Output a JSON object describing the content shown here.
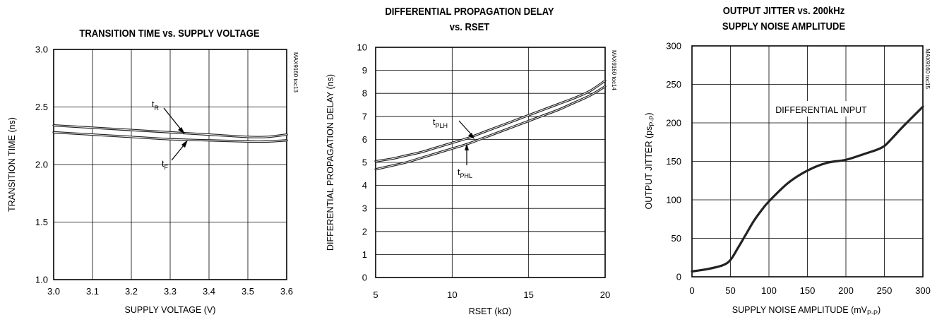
{
  "chart_data": [
    {
      "type": "line",
      "title": "TRANSITION TIME vs. SUPPLY VOLTAGE",
      "xlabel": "SUPPLY VOLTAGE (V)",
      "ylabel": "TRANSITION TIME (ns)",
      "side_label": "MAX9160 toc13",
      "xlim": [
        3.0,
        3.6
      ],
      "ylim": [
        1.0,
        3.0
      ],
      "xticks": [
        "3.0",
        "3.1",
        "3.2",
        "3.3",
        "3.4",
        "3.5",
        "3.6"
      ],
      "yticks": [
        "1.0",
        "1.5",
        "2.0",
        "2.5",
        "3.0"
      ],
      "grid": true,
      "series": [
        {
          "name": "tR",
          "name_main": "t",
          "name_sub": "R",
          "x": [
            3.0,
            3.1,
            3.2,
            3.3,
            3.4,
            3.5,
            3.55,
            3.6
          ],
          "y": [
            2.34,
            2.32,
            2.3,
            2.28,
            2.26,
            2.24,
            2.24,
            2.26
          ]
        },
        {
          "name": "tF",
          "name_main": "t",
          "name_sub": "F",
          "x": [
            3.0,
            3.1,
            3.2,
            3.3,
            3.4,
            3.5,
            3.55,
            3.6
          ],
          "y": [
            2.28,
            2.26,
            2.24,
            2.22,
            2.21,
            2.2,
            2.2,
            2.21
          ]
        }
      ]
    },
    {
      "type": "line",
      "title": "DIFFERENTIAL PROPAGATION DELAY vs. RSET",
      "title_lines": [
        "DIFFERENTIAL PROPAGATION DELAY",
        "vs. RSET"
      ],
      "xlabel": "RSET (kΩ)",
      "ylabel": "DIFFERENTIAL PROPAGATION DELAY (ns)",
      "side_label": "MAX9160 toc14",
      "xlim": [
        5,
        20
      ],
      "ylim": [
        0,
        10
      ],
      "xticks": [
        "5",
        "10",
        "15",
        "20"
      ],
      "yticks": [
        "0",
        "1",
        "2",
        "3",
        "4",
        "5",
        "6",
        "7",
        "8",
        "9",
        "10"
      ],
      "grid": true,
      "series": [
        {
          "name": "tPLH",
          "name_main": "t",
          "name_sub": "PLH",
          "x": [
            5,
            6,
            7,
            8,
            9,
            10,
            11,
            12,
            13,
            14,
            15,
            16,
            17,
            18,
            19,
            20
          ],
          "y": [
            5.05,
            5.15,
            5.3,
            5.45,
            5.65,
            5.85,
            6.05,
            6.3,
            6.55,
            6.8,
            7.05,
            7.3,
            7.55,
            7.8,
            8.1,
            8.55
          ]
        },
        {
          "name": "tPHL",
          "name_main": "t",
          "name_sub": "PHL",
          "x": [
            5,
            6,
            7,
            8,
            9,
            10,
            11,
            12,
            13,
            14,
            15,
            16,
            17,
            18,
            19,
            20
          ],
          "y": [
            4.7,
            4.85,
            5.0,
            5.2,
            5.4,
            5.6,
            5.8,
            6.05,
            6.3,
            6.55,
            6.8,
            7.05,
            7.3,
            7.6,
            7.9,
            8.3
          ]
        }
      ]
    },
    {
      "type": "line",
      "title": "OUTPUT JITTER vs. 200kHz SUPPLY NOISE AMPLITUDE",
      "title_lines": [
        "OUTPUT JITTER vs. 200kHz",
        "SUPPLY NOISE AMPLITUDE"
      ],
      "xlabel": "SUPPLY NOISE AMPLITUDE (mVP-P)",
      "xlabel_main": "SUPPLY NOISE AMPLITUDE (mV",
      "xlabel_sub": "P-P",
      "xlabel_end": ")",
      "ylabel": "OUTPUT JITTER (psP-P)",
      "ylabel_main": "OUTPUT JITTER (ps",
      "ylabel_sub": "P-P",
      "ylabel_end": ")",
      "side_label": "MAX9160 toc15",
      "annotation": "DIFFERENTIAL INPUT",
      "xlim": [
        0,
        300
      ],
      "ylim": [
        0,
        300
      ],
      "xticks": [
        "0",
        "50",
        "100",
        "150",
        "200",
        "250",
        "300"
      ],
      "yticks": [
        "0",
        "50",
        "100",
        "150",
        "200",
        "250",
        "300"
      ],
      "grid": true,
      "series": [
        {
          "x": [
            0,
            20,
            40,
            50,
            60,
            70,
            80,
            90,
            100,
            125,
            150,
            175,
            200,
            225,
            240,
            250,
            260,
            275,
            300
          ],
          "y": [
            7,
            10,
            15,
            22,
            38,
            55,
            72,
            86,
            98,
            122,
            138,
            148,
            152,
            160,
            165,
            170,
            180,
            196,
            221
          ]
        }
      ]
    }
  ]
}
